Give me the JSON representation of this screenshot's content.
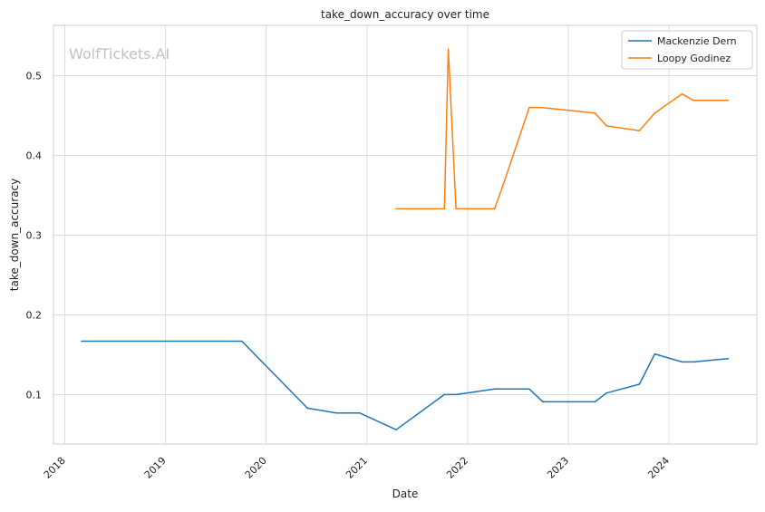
{
  "chart_data": {
    "type": "line",
    "title": "take_down_accuracy over time",
    "xlabel": "Date",
    "ylabel": "take_down_accuracy",
    "x_ticks": [
      "2018",
      "2019",
      "2020",
      "2021",
      "2022",
      "2023",
      "2024"
    ],
    "y_ticks": [
      "0.1",
      "0.2",
      "0.3",
      "0.4",
      "0.5"
    ],
    "xlim": [
      "2017-11-21",
      "2024-11-15"
    ],
    "ylim": [
      0.038,
      0.563
    ],
    "grid": true,
    "legend_position": "top-right",
    "watermark": "WolfTickets.AI",
    "series": [
      {
        "name": "Mackenzie Dern",
        "color": "#1f77b4",
        "points": [
          [
            "2018-03-03",
            0.167
          ],
          [
            "2019-10-05",
            0.167
          ],
          [
            "2020-05-30",
            0.083
          ],
          [
            "2020-09-12",
            0.077
          ],
          [
            "2020-12-05",
            0.077
          ],
          [
            "2021-04-17",
            0.056
          ],
          [
            "2021-10-09",
            0.1
          ],
          [
            "2021-11-20",
            0.1
          ],
          [
            "2022-04-09",
            0.107
          ],
          [
            "2022-08-13",
            0.107
          ],
          [
            "2022-10-01",
            0.091
          ],
          [
            "2023-04-08",
            0.091
          ],
          [
            "2023-05-20",
            0.102
          ],
          [
            "2023-09-16",
            0.113
          ],
          [
            "2023-11-11",
            0.151
          ],
          [
            "2024-02-17",
            0.141
          ],
          [
            "2024-03-30",
            0.141
          ],
          [
            "2024-08-03",
            0.145
          ]
        ]
      },
      {
        "name": "Loopy Godinez",
        "color": "#ff7f0e",
        "points": [
          [
            "2021-04-17",
            0.333
          ],
          [
            "2021-10-09",
            0.333
          ],
          [
            "2021-10-23",
            0.533
          ],
          [
            "2021-11-20",
            0.333
          ],
          [
            "2022-04-09",
            0.333
          ],
          [
            "2022-05-07",
            0.36
          ],
          [
            "2022-08-13",
            0.46
          ],
          [
            "2022-09-24",
            0.46
          ],
          [
            "2023-04-08",
            0.453
          ],
          [
            "2023-05-20",
            0.437
          ],
          [
            "2023-09-16",
            0.431
          ],
          [
            "2023-11-11",
            0.453
          ],
          [
            "2024-02-17",
            0.477
          ],
          [
            "2024-03-30",
            0.469
          ],
          [
            "2024-08-03",
            0.469
          ]
        ]
      }
    ]
  }
}
